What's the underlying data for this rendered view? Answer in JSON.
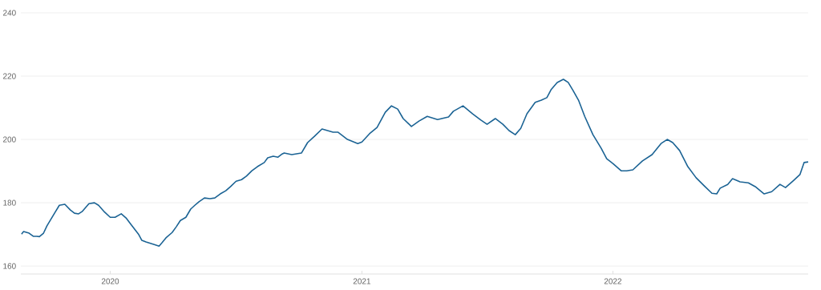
{
  "chart_data": {
    "type": "line",
    "color": "#1b6394",
    "grid": "y",
    "line_style": "solid",
    "marker": "none",
    "xlim": [
      "2019-08-24",
      "2022-10-12"
    ],
    "ylim": [
      157.5,
      240
    ],
    "yticks": [
      160,
      180,
      200,
      220,
      240
    ],
    "xticks": [
      {
        "value": "2020-01-01",
        "label": "2020"
      },
      {
        "value": "2021-01-01",
        "label": "2021"
      },
      {
        "value": "2022-01-01",
        "label": "2022"
      }
    ],
    "x": [
      "2019-08-25",
      "2019-08-28",
      "2019-09-05",
      "2019-09-11",
      "2019-09-16",
      "2019-09-20",
      "2019-09-26",
      "2019-10-01",
      "2019-10-12",
      "2019-10-19",
      "2019-10-27",
      "2019-11-04",
      "2019-11-10",
      "2019-11-16",
      "2019-11-21",
      "2019-12-01",
      "2019-12-09",
      "2019-12-15",
      "2019-12-24",
      "2020-01-01",
      "2020-01-08",
      "2020-01-17",
      "2020-01-24",
      "2020-01-31",
      "2020-02-11",
      "2020-02-16",
      "2020-02-22",
      "2020-03-05",
      "2020-03-12",
      "2020-03-16",
      "2020-03-22",
      "2020-03-31",
      "2020-04-06",
      "2020-04-12",
      "2020-04-20",
      "2020-04-27",
      "2020-05-03",
      "2020-05-09",
      "2020-05-17",
      "2020-05-25",
      "2020-06-01",
      "2020-06-09",
      "2020-06-17",
      "2020-06-24",
      "2020-07-02",
      "2020-07-10",
      "2020-07-17",
      "2020-07-25",
      "2020-08-02",
      "2020-08-12",
      "2020-08-17",
      "2020-08-25",
      "2020-09-01",
      "2020-09-07",
      "2020-09-10",
      "2020-09-21",
      "2020-10-05",
      "2020-10-14",
      "2020-10-24",
      "2020-11-04",
      "2020-11-12",
      "2020-11-20",
      "2020-11-27",
      "2020-12-11",
      "2020-12-26",
      "2021-01-01",
      "2021-01-12",
      "2021-01-23",
      "2021-02-04",
      "2021-02-13",
      "2021-02-22",
      "2021-03-02",
      "2021-03-14",
      "2021-03-25",
      "2021-04-06",
      "2021-04-21",
      "2021-05-07",
      "2021-05-14",
      "2021-05-28",
      "2021-06-11",
      "2021-06-23",
      "2021-07-02",
      "2021-07-14",
      "2021-07-25",
      "2021-08-03",
      "2021-08-12",
      "2021-08-20",
      "2021-08-29",
      "2021-09-10",
      "2021-09-19",
      "2021-09-27",
      "2021-10-03",
      "2021-10-12",
      "2021-10-21",
      "2021-10-28",
      "2021-11-04",
      "2021-11-12",
      "2021-11-21",
      "2021-12-03",
      "2021-12-15",
      "2021-12-23",
      "2022-01-01",
      "2022-01-13",
      "2022-01-21",
      "2022-01-30",
      "2022-02-13",
      "2022-02-27",
      "2022-03-12",
      "2022-03-21",
      "2022-03-29",
      "2022-04-08",
      "2022-04-20",
      "2022-05-02",
      "2022-05-14",
      "2022-05-25",
      "2022-06-01",
      "2022-06-06",
      "2022-06-17",
      "2022-06-24",
      "2022-07-05",
      "2022-07-17",
      "2022-07-27",
      "2022-08-09",
      "2022-08-20",
      "2022-09-01",
      "2022-09-09",
      "2022-09-21",
      "2022-09-30",
      "2022-10-06",
      "2022-10-12"
    ],
    "values": [
      170.1,
      170.9,
      170.4,
      169.4,
      169.4,
      169.3,
      170.4,
      172.7,
      176.7,
      179.2,
      179.5,
      177.7,
      176.7,
      176.5,
      177.2,
      179.7,
      180.0,
      179.2,
      177.0,
      175.4,
      175.4,
      176.5,
      175.2,
      173.2,
      170.1,
      168.1,
      167.6,
      166.8,
      166.3,
      167.3,
      168.9,
      170.6,
      172.4,
      174.4,
      175.4,
      178.0,
      179.2,
      180.3,
      181.5,
      181.3,
      181.5,
      182.8,
      183.8,
      185.1,
      186.8,
      187.3,
      188.4,
      190.1,
      191.4,
      192.7,
      194.2,
      194.7,
      194.4,
      195.4,
      195.7,
      195.2,
      195.7,
      199.0,
      201.0,
      203.3,
      202.8,
      202.3,
      202.3,
      200.0,
      198.7,
      199.2,
      201.8,
      203.8,
      208.6,
      210.6,
      209.6,
      206.6,
      204.1,
      205.8,
      207.3,
      206.3,
      207.1,
      208.9,
      210.6,
      208.1,
      206.1,
      204.8,
      206.6,
      204.8,
      202.8,
      201.5,
      203.5,
      208.1,
      211.7,
      212.4,
      213.2,
      215.7,
      218.0,
      219.0,
      218.0,
      215.5,
      212.4,
      207.3,
      201.5,
      197.2,
      193.9,
      192.4,
      190.1,
      190.1,
      190.4,
      193.2,
      195.2,
      198.7,
      200.0,
      199.0,
      196.5,
      191.4,
      187.9,
      185.3,
      183.0,
      182.8,
      184.6,
      185.8,
      187.6,
      186.6,
      186.3,
      185.1,
      182.8,
      183.5,
      185.8,
      184.8,
      187.1,
      188.9,
      192.7,
      192.9
    ]
  }
}
